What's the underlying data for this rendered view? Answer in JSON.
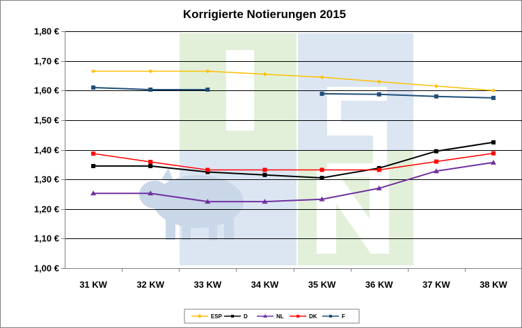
{
  "chart_data": {
    "type": "line",
    "title": "Korrigierte Notierungen 2015",
    "xlabel": "",
    "ylabel": "",
    "categories": [
      "31 KW",
      "32 KW",
      "33 KW",
      "34 KW",
      "35 KW",
      "36 KW",
      "37 KW",
      "38 KW"
    ],
    "y_ticks": [
      "1,00 €",
      "1,10 €",
      "1,20 €",
      "1,30 €",
      "1,40 €",
      "1,50 €",
      "1,60 €",
      "1,70 €",
      "1,80 €"
    ],
    "ylim": [
      1.0,
      1.8
    ],
    "grid": true,
    "legend_position": "bottom",
    "series": [
      {
        "name": "ESP",
        "color": "#FFC000",
        "marker": "diamond",
        "values": [
          1.665,
          1.665,
          1.665,
          1.655,
          1.645,
          1.63,
          1.615,
          1.6
        ]
      },
      {
        "name": "D",
        "color": "#000000",
        "marker": "square",
        "values": [
          1.345,
          1.345,
          1.325,
          1.315,
          1.305,
          1.338,
          1.395,
          1.425
        ]
      },
      {
        "name": "NL",
        "color": "#7030A0",
        "marker": "triangle",
        "values": [
          1.253,
          1.253,
          1.225,
          1.225,
          1.233,
          1.27,
          1.328,
          1.357
        ]
      },
      {
        "name": "DK",
        "color": "#FF0000",
        "marker": "square",
        "values": [
          1.387,
          1.359,
          1.332,
          1.332,
          1.332,
          1.332,
          1.36,
          1.388
        ]
      },
      {
        "name": "F",
        "color": "#1F4E79",
        "marker": "square",
        "values": [
          1.61,
          1.603,
          1.603,
          null,
          1.589,
          1.587,
          1.58,
          1.575
        ]
      }
    ]
  },
  "watermark": {
    "colors": {
      "green": "#E2F0D9",
      "blue": "#DCE6F2",
      "white": "#FFFFFF",
      "pig": "#C9D7E8"
    }
  }
}
